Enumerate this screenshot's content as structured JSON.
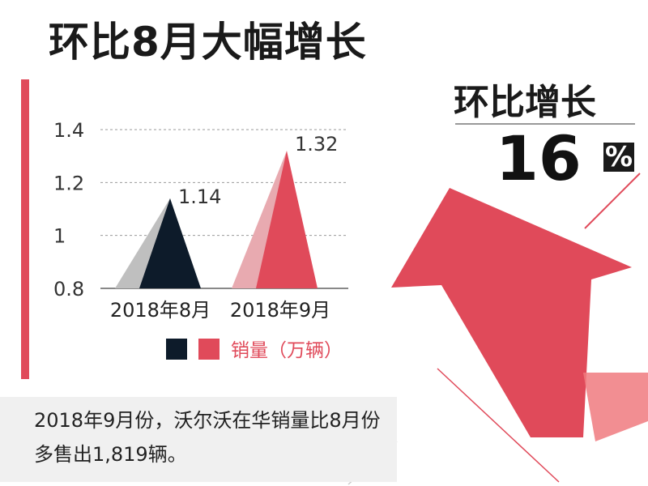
{
  "title": "环比8月大幅增长",
  "kpi": {
    "label": "环比增长",
    "value": "16",
    "unit": "%"
  },
  "caption": "2018年9月份，沃尔沃在华销量比8月份多售出1,819辆。",
  "colors": {
    "accent": "#e04a5a",
    "dark": "#0d1b2a",
    "arrow": "#e04a5a"
  },
  "chart_data": {
    "type": "area",
    "categories": [
      "2018年8月",
      "2018年9月"
    ],
    "values": [
      1.14,
      1.32
    ],
    "labels": [
      "1.14",
      "1.32"
    ],
    "ylim": [
      0.8,
      1.4
    ],
    "yticks": [
      "1.4",
      "1.2",
      "1",
      "0.8"
    ],
    "grid": true,
    "legend": {
      "label": "销量（万辆）",
      "placement": "bottom-right"
    },
    "series_colors": [
      "#0d1b2a",
      "#e04a5a"
    ]
  }
}
